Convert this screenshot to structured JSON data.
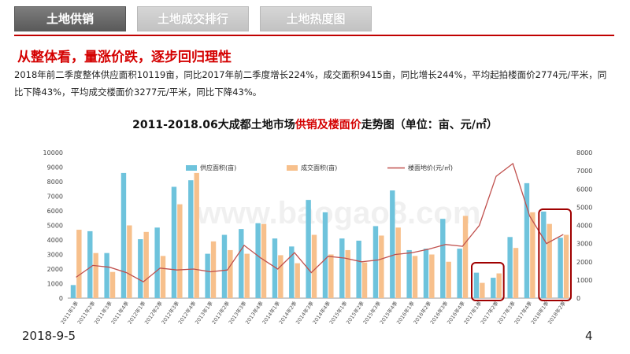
{
  "tabs": [
    {
      "label": "土地供销",
      "active": true
    },
    {
      "label": "土地成交排行",
      "active": false
    },
    {
      "label": "土地热度图",
      "active": false
    }
  ],
  "headline": "从整体看，量涨价跌，逐步回归理性",
  "paragraph": "2018年前二季度整体供应面积10119亩，同比2017年前二季度增长224%，成交面积9415亩，同比增长244%，平均起拍楼面价2774元/平米，同比下降43%，平均成交楼面价3277元/平米，同比下降43%。",
  "chart_title": {
    "pre": "2011-2018.06大成都土地市场",
    "highlight": "供销及楼面价",
    "post": "走势图（单位：亩、元/㎡）"
  },
  "footer": {
    "date": "2018-9-5",
    "page": "4"
  },
  "chart_data": {
    "type": "bar",
    "title": "2011-2018.06大成都土地市场供销及楼面价走势图（单位：亩、元/㎡）",
    "categories": [
      "2011年1季",
      "2011年2季",
      "2011年3季",
      "2011年4季",
      "2012年1季",
      "2012年2季",
      "2012年3季",
      "2012年4季",
      "2013年1季",
      "2013年2季",
      "2013年3季",
      "2013年4季",
      "2014年1季",
      "2014年2季",
      "2014年3季",
      "2014年4季",
      "2015年1季",
      "2015年2季",
      "2015年3季",
      "2015年4季",
      "2016年1季",
      "2016年2季",
      "2016年3季",
      "2016年4季",
      "2017年1季",
      "2017年2季",
      "2017年3季",
      "2017年4季",
      "2018年1季",
      "2018年2季"
    ],
    "series": [
      {
        "name": "供应面积(亩)",
        "type": "bar",
        "axis": "left",
        "color": "#6ec3dc",
        "values": [
          900,
          4600,
          3100,
          8600,
          4050,
          4850,
          7650,
          8100,
          3050,
          4350,
          4750,
          5150,
          4100,
          3550,
          6750,
          5900,
          4100,
          3950,
          4950,
          7400,
          3300,
          3400,
          5450,
          3400,
          1750,
          1400,
          4200,
          7900,
          5950,
          4150
        ]
      },
      {
        "name": "成交面积(亩)",
        "type": "bar",
        "axis": "left",
        "color": "#f7c08c",
        "values": [
          4700,
          3100,
          1800,
          5000,
          4550,
          2900,
          6450,
          8600,
          3900,
          3300,
          3050,
          5100,
          2950,
          2400,
          4350,
          3000,
          3300,
          2450,
          4300,
          4850,
          2900,
          3000,
          2500,
          5650,
          1050,
          1700,
          3450,
          5900,
          5100,
          4350
        ]
      },
      {
        "name": "楼面地价(元/㎡)",
        "type": "line",
        "axis": "right",
        "color": "#c0504d",
        "values": [
          1150,
          1800,
          1700,
          1400,
          900,
          1650,
          1550,
          1600,
          1450,
          1550,
          2900,
          2200,
          1600,
          2500,
          1400,
          2300,
          2200,
          2000,
          2100,
          2400,
          2500,
          2700,
          2950,
          2850,
          4000,
          6700,
          7400,
          4500,
          3000,
          3500
        ]
      }
    ],
    "y_left": {
      "min": 0,
      "max": 10000,
      "ticks": [
        0,
        1000,
        2000,
        3000,
        4000,
        5000,
        6000,
        7000,
        8000,
        9000,
        10000
      ]
    },
    "y_right": {
      "min": 0,
      "max": 8000,
      "ticks": [
        0,
        1000,
        2000,
        3000,
        4000,
        5000,
        6000,
        7000,
        8000
      ]
    },
    "highlights": [
      {
        "from_index": 24,
        "to_index": 25,
        "color": "#a00000"
      },
      {
        "from_index": 28,
        "to_index": 29,
        "color": "#a00000"
      }
    ],
    "watermark": "www.baogao8.com",
    "legend_position": "top",
    "grid": false
  }
}
